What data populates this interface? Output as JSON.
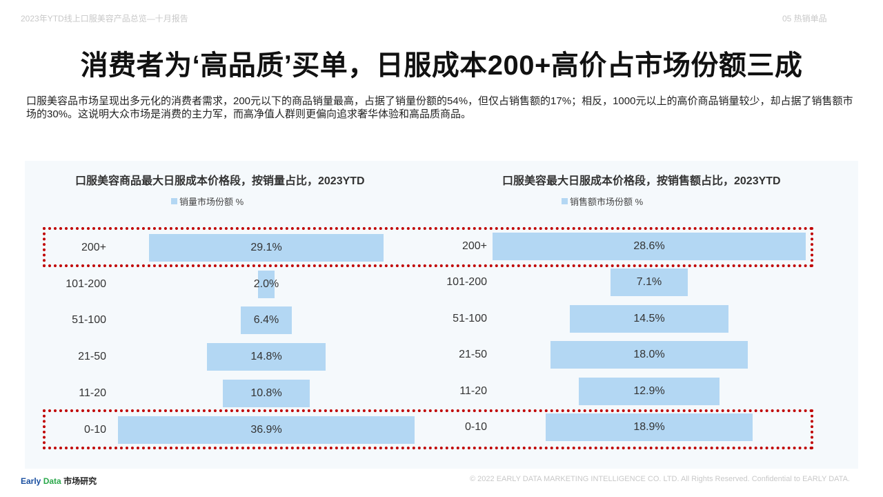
{
  "header": {
    "report_title": "2023年YTD线上口服美容产品总览—十月报告",
    "section": "05 热销单品"
  },
  "title": "消费者为‘高品质’买单，日服成本200+高价占市场份额三成",
  "description": "口服美容品市场呈现出多元化的消费者需求，200元以下的商品销量最高，占据了销量份额的54%，但仅占销售额的17%；相反，1000元以上的高价商品销量较少，却占据了销售额市场的30%。这说明大众市场是消费的主力军，而高净值人群则更偏向追求奢华体验和高品质商品。",
  "colors": {
    "bar": "#b3d7f3",
    "highlight": "#c00000",
    "panel_bg": "#f5f9fc"
  },
  "chart_data": [
    {
      "type": "bar",
      "orientation": "horizontal-centered",
      "title": "口服美容商品最大日服成本价格段，按销量占比，2023YTD",
      "legend": "销量市场份额 %",
      "categories": [
        "200+",
        "101-200",
        "51-100",
        "21-50",
        "11-20",
        "0-10"
      ],
      "values": [
        29.1,
        2.0,
        6.4,
        14.8,
        10.8,
        36.9
      ],
      "value_labels": [
        "29.1%",
        "2.0%",
        "6.4%",
        "14.8%",
        "10.8%",
        "36.9%"
      ],
      "highlighted_categories": [
        "200+",
        "0-10"
      ]
    },
    {
      "type": "bar",
      "orientation": "horizontal-centered",
      "title": "口服美容最大日服成本价格段，按销售额占比，2023YTD",
      "legend": "销售额市场份额 %",
      "categories": [
        "200+",
        "101-200",
        "51-100",
        "21-50",
        "11-20",
        "0-10"
      ],
      "values": [
        28.6,
        7.1,
        14.5,
        18.0,
        12.9,
        18.9
      ],
      "value_labels": [
        "28.6%",
        "7.1%",
        "14.5%",
        "18.0%",
        "12.9%",
        "18.9%"
      ],
      "highlighted_categories": [
        "200+",
        "0-10"
      ]
    }
  ],
  "footer": {
    "logo_early": "Early",
    "logo_data": "Data",
    "logo_cn": "市场研究",
    "copyright": "© 2022 EARLY DATA MARKETING INTELLIGENCE CO. LTD. All Rights Reserved. Confidential to EARLY DATA."
  }
}
